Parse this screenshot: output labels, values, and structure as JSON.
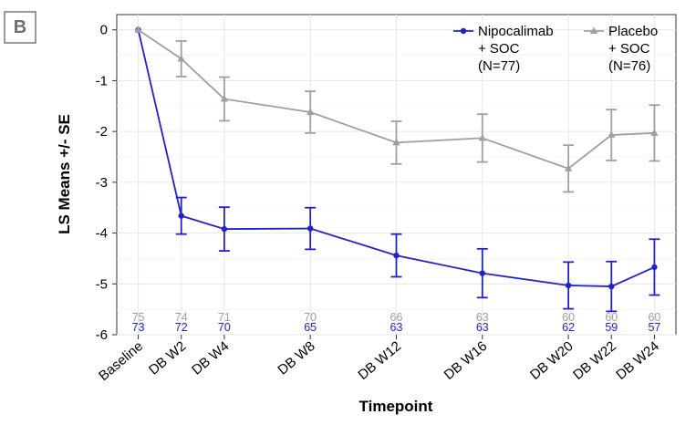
{
  "panel_label": "B",
  "chart_data": {
    "type": "line",
    "title": "",
    "xlabel": "Timepoint",
    "ylabel": "LS Means +/- SE",
    "ylim": [
      -6,
      0.3
    ],
    "yticks": [
      0,
      -1,
      -2,
      -3,
      -4,
      -5,
      -6
    ],
    "categories": [
      "Baseline",
      "DB W2",
      "DB W4",
      "DB W8",
      "DB W12",
      "DB W16",
      "DB W20",
      "DB W22",
      "DB W24"
    ],
    "x_weeks": [
      0,
      2,
      4,
      8,
      12,
      16,
      20,
      22,
      24
    ],
    "grid": true,
    "legend_position": "top-right",
    "series": [
      {
        "name": "Nipocalimab + SOC (N=77)",
        "legend_lines": [
          "Nipocalimab",
          "+ SOC",
          "(N=77)"
        ],
        "color": "#2222cc",
        "marker": "circle",
        "values": [
          0,
          -3.66,
          -3.92,
          -3.91,
          -4.44,
          -4.79,
          -5.03,
          -5.05,
          -4.67
        ],
        "se": [
          0,
          0.36,
          0.43,
          0.41,
          0.42,
          0.48,
          0.46,
          0.49,
          0.55
        ],
        "n_at_risk": [
          "73",
          "72",
          "70",
          "65",
          "63",
          "63",
          "62",
          "59",
          "57"
        ]
      },
      {
        "name": "Placebo + SOC (N=76)",
        "legend_lines": [
          "Placebo",
          "+ SOC",
          "(N=76)"
        ],
        "color": "#a0a0a0",
        "marker": "triangle",
        "values": [
          0,
          -0.57,
          -1.36,
          -1.62,
          -2.22,
          -2.13,
          -2.73,
          -2.07,
          -2.03
        ],
        "se": [
          0,
          0.35,
          0.43,
          0.41,
          0.42,
          0.47,
          0.46,
          0.5,
          0.55
        ],
        "n_at_risk": [
          "75",
          "74",
          "71",
          "70",
          "66",
          "63",
          "60",
          "60",
          "60"
        ]
      }
    ]
  }
}
